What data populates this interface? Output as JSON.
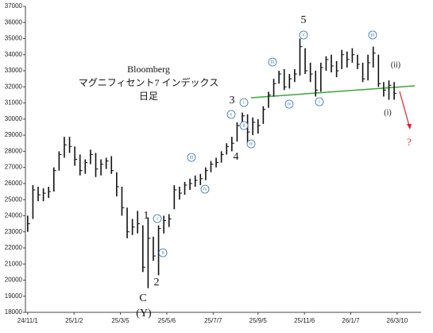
{
  "chart_data": {
    "type": "ohlc",
    "title_lines": [
      "Bloomberg",
      "マグニフィセント7 インデックス",
      "日足"
    ],
    "x": [
      "24/11/1",
      "24/11/8",
      "24/11/15",
      "24/11/22",
      "24/11/29",
      "24/12/6",
      "24/12/13",
      "24/12/20",
      "24/12/27",
      "25/1/3",
      "25/1/10",
      "25/1/17",
      "25/1/24",
      "25/1/31",
      "25/2/7",
      "25/2/14",
      "25/2/21",
      "25/2/28",
      "25/3/7",
      "25/3/14",
      "25/3/21",
      "25/3/28",
      "25/4/4",
      "25/4/11",
      "25/4/18",
      "25/4/25",
      "25/5/2",
      "25/5/9",
      "25/5/16",
      "25/5/23",
      "25/5/30",
      "25/6/6",
      "25/6/13",
      "25/6/20",
      "25/6/27",
      "25/7/4",
      "25/7/11",
      "25/7/18",
      "25/7/25",
      "25/8/1",
      "25/8/8",
      "25/8/15",
      "25/8/22",
      "25/8/29",
      "25/9/5",
      "25/9/12",
      "25/9/19",
      "25/9/26",
      "25/10/3",
      "25/10/10",
      "25/10/17",
      "25/10/24",
      "25/10/31",
      "25/11/7",
      "25/11/14",
      "25/11/21",
      "25/11/28",
      "25/12/5",
      "25/12/12",
      "25/12/19",
      "25/12/26",
      "26/1/2",
      "26/1/9",
      "26/1/16",
      "26/1/23",
      "26/1/30",
      "26/2/6",
      "26/2/13",
      "26/2/20",
      "26/2/27",
      "26/3/6"
    ],
    "high": [
      24000,
      25900,
      25800,
      25700,
      25800,
      27000,
      28000,
      28900,
      28900,
      28300,
      27800,
      27500,
      28100,
      27900,
      27500,
      27600,
      27700,
      26700,
      25800,
      24500,
      23800,
      24300,
      23400,
      23900,
      22700,
      23400,
      24000,
      24100,
      25900,
      25800,
      26100,
      26300,
      26500,
      26600,
      27000,
      27400,
      27600,
      28000,
      28500,
      28900,
      29800,
      30400,
      30300,
      30100,
      30000,
      30800,
      31700,
      32500,
      33000,
      33100,
      32800,
      33100,
      35000,
      34400,
      33500,
      33000,
      33500,
      33900,
      34000,
      33600,
      34300,
      34200,
      34400,
      34000,
      33500,
      34000,
      34500,
      34000,
      32300,
      32400,
      32300
    ],
    "low": [
      23000,
      23800,
      24900,
      24900,
      25100,
      25500,
      26800,
      27600,
      27900,
      27100,
      26500,
      26600,
      27200,
      26400,
      26500,
      26900,
      26600,
      25200,
      24000,
      22600,
      22800,
      22900,
      20500,
      19500,
      21200,
      20300,
      22900,
      23300,
      24400,
      25000,
      25300,
      25600,
      25800,
      25900,
      26200,
      26700,
      27000,
      27300,
      27800,
      28000,
      28600,
      29500,
      28500,
      29000,
      29100,
      29700,
      30700,
      31400,
      32200,
      31800,
      31900,
      32300,
      32700,
      32800,
      32300,
      31400,
      31700,
      33000,
      32900,
      32600,
      33100,
      33200,
      33500,
      33100,
      32300,
      32400,
      33200,
      32000,
      31400,
      31200,
      31200
    ],
    "close": [
      23500,
      25600,
      25300,
      25400,
      25500,
      26800,
      27800,
      28400,
      28300,
      27500,
      26800,
      27300,
      27800,
      26900,
      27200,
      27400,
      26800,
      25800,
      24500,
      23000,
      23300,
      23500,
      20800,
      22600,
      21500,
      23200,
      23700,
      23800,
      25600,
      25400,
      25900,
      26000,
      26200,
      26300,
      26800,
      27200,
      27300,
      27800,
      28300,
      28500,
      29600,
      30200,
      29200,
      29800,
      29600,
      30600,
      31500,
      32200,
      32800,
      32000,
      32500,
      32800,
      34500,
      33000,
      32800,
      31800,
      33200,
      33700,
      33300,
      33000,
      34000,
      33700,
      34000,
      33400,
      32500,
      33500,
      34100,
      32200,
      31800,
      32100,
      31600
    ],
    "color": "#111111",
    "xlim": [
      "24/10/29",
      "26/4/11"
    ],
    "xticks": [
      "24/11/1",
      "25/1/2",
      "25/3/5",
      "25/5/6",
      "25/7/7",
      "25/9/5",
      "25/11/6",
      "26/1/7",
      "26/3/10"
    ],
    "ylim": [
      18000,
      37000
    ],
    "yticks": [
      18000,
      19000,
      20000,
      21000,
      22000,
      23000,
      24000,
      25000,
      26000,
      27000,
      28000,
      29000,
      30000,
      31000,
      32000,
      33000,
      34000,
      35000,
      36000,
      37000
    ],
    "annotations": [
      "5",
      "v",
      "iii",
      "iv",
      "i",
      "iii",
      "(ii)",
      "(i)",
      "?",
      "3",
      "v",
      "i",
      "ii",
      "iv",
      "4",
      "iii",
      "iv",
      "1",
      "i",
      "ii",
      "2",
      "C",
      "(Y)"
    ]
  }
}
